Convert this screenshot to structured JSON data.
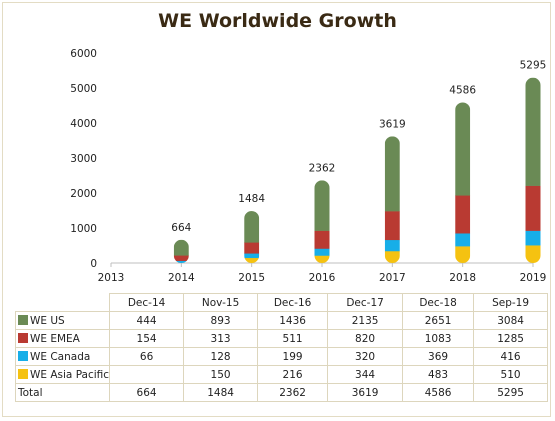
{
  "chart_data": {
    "type": "bar",
    "title": "WE Worldwide Growth",
    "y_ticks": [
      "0",
      "1000",
      "2000",
      "3000",
      "4000",
      "5000",
      "6000"
    ],
    "x_ticks": [
      "2013",
      "2014",
      "2015",
      "2016",
      "2017",
      "2018",
      "2019"
    ],
    "ylim": [
      0,
      6000
    ],
    "categories": [
      "Dec-14",
      "Nov-15",
      "Dec-16",
      "Dec-17",
      "Dec-18",
      "Sep-19"
    ],
    "series": [
      {
        "name": "WE US",
        "color": "#6a8a55",
        "values": [
          444,
          893,
          1436,
          2135,
          2651,
          3084
        ]
      },
      {
        "name": "WE EMEA",
        "color": "#b93a32",
        "values": [
          154,
          313,
          511,
          820,
          1083,
          1285
        ]
      },
      {
        "name": "WE Canada",
        "color": "#17aee8",
        "values": [
          66,
          128,
          199,
          320,
          369,
          416
        ]
      },
      {
        "name": "WE Asia Pacific",
        "color": "#f5c211",
        "values": [
          null,
          150,
          216,
          344,
          483,
          510
        ]
      }
    ],
    "totals": [
      664,
      1484,
      2362,
      3619,
      4586,
      5295
    ],
    "total_label": "Total",
    "grid": false,
    "legend": "data-table"
  },
  "table": {
    "headers": [
      "Dec-14",
      "Nov-15",
      "Dec-16",
      "Dec-17",
      "Dec-18",
      "Sep-19"
    ],
    "rows": [
      {
        "label": "WE US",
        "color": "#6a8a55",
        "cells": [
          "444",
          "893",
          "1436",
          "2135",
          "2651",
          "3084"
        ]
      },
      {
        "label": "WE EMEA",
        "color": "#b93a32",
        "cells": [
          "154",
          "313",
          "511",
          "820",
          "1083",
          "1285"
        ]
      },
      {
        "label": "WE Canada",
        "color": "#17aee8",
        "cells": [
          "66",
          "128",
          "199",
          "320",
          "369",
          "416"
        ]
      },
      {
        "label": "WE Asia Pacific",
        "color": "#f5c211",
        "cells": [
          "",
          "150",
          "216",
          "344",
          "483",
          "510"
        ]
      }
    ],
    "total": {
      "label": "Total",
      "cells": [
        "664",
        "1484",
        "2362",
        "3619",
        "4586",
        "5295"
      ]
    }
  }
}
